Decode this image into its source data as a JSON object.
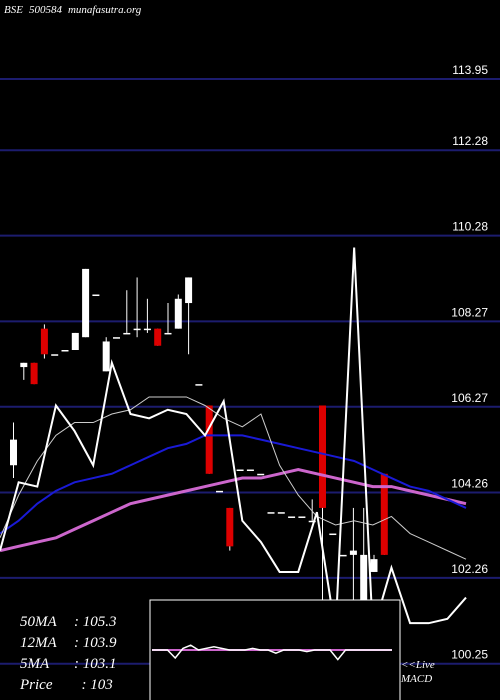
{
  "header": {
    "exchange": "BSE",
    "code": "500584",
    "site": "munafasutra.org"
  },
  "colors": {
    "background": "#000000",
    "grid": "#1c1c6e",
    "up": "#ffffff",
    "down": "#dd0000",
    "ma_long": "#1a1ad6",
    "ma_mid": "#cc66cc",
    "price_line": "#ffffff"
  },
  "legend": {
    "ma50_label": "50MA",
    "ma50_value": ": 105.3",
    "ma12_label": "12MA",
    "ma12_value": ": 103.9",
    "ma5_label": "5MA",
    "ma5_value": ": 103.1",
    "price_label": "Price",
    "price_value": "  : 103"
  },
  "macd": {
    "line1": "<<Live",
    "line2": "MACD"
  },
  "chart_data": {
    "type": "candlestick",
    "title": "BSE 500584 munafasutra.org",
    "y_ticks": [
      "113.95",
      "112.28",
      "110.28",
      "108.27",
      "106.27",
      "104.26",
      "102.26",
      "100.25"
    ],
    "ylim": [
      99.4,
      115.8
    ],
    "candles": [
      {
        "o": 104.9,
        "h": 105.9,
        "l": 104.6,
        "c": 105.5
      },
      {
        "o": 107.2,
        "h": 107.3,
        "l": 106.9,
        "c": 107.3
      },
      {
        "o": 107.3,
        "h": 107.3,
        "l": 106.8,
        "c": 106.8
      },
      {
        "o": 108.1,
        "h": 108.2,
        "l": 107.4,
        "c": 107.5
      },
      {
        "o": 107.5,
        "h": 107.5,
        "l": 107.5,
        "c": 107.5
      },
      {
        "o": 107.6,
        "h": 107.6,
        "l": 107.6,
        "c": 107.6
      },
      {
        "o": 107.6,
        "h": 108.0,
        "l": 107.6,
        "c": 108.0
      },
      {
        "o": 107.9,
        "h": 109.5,
        "l": 107.9,
        "c": 109.5
      },
      {
        "o": 108.9,
        "h": 108.9,
        "l": 108.9,
        "c": 108.9
      },
      {
        "o": 107.1,
        "h": 107.9,
        "l": 107.1,
        "c": 107.8
      },
      {
        "o": 107.9,
        "h": 107.9,
        "l": 107.9,
        "c": 107.9
      },
      {
        "o": 108.0,
        "h": 109.0,
        "l": 108.0,
        "c": 108.0
      },
      {
        "o": 108.1,
        "h": 109.3,
        "l": 107.9,
        "c": 108.1
      },
      {
        "o": 108.1,
        "h": 108.8,
        "l": 108.0,
        "c": 108.1
      },
      {
        "o": 108.1,
        "h": 108.1,
        "l": 107.7,
        "c": 107.7
      },
      {
        "o": 108.0,
        "h": 108.7,
        "l": 108.0,
        "c": 108.0
      },
      {
        "o": 108.1,
        "h": 108.9,
        "l": 108.1,
        "c": 108.8
      },
      {
        "o": 108.7,
        "h": 109.3,
        "l": 107.5,
        "c": 109.3
      },
      {
        "o": 106.8,
        "h": 106.8,
        "l": 106.8,
        "c": 106.8
      },
      {
        "o": 106.3,
        "h": 106.3,
        "l": 104.7,
        "c": 104.7
      },
      {
        "o": 104.3,
        "h": 104.3,
        "l": 104.3,
        "c": 104.3
      },
      {
        "o": 103.9,
        "h": 103.9,
        "l": 102.9,
        "c": 103.0
      },
      {
        "o": 104.8,
        "h": 104.8,
        "l": 104.8,
        "c": 104.8
      },
      {
        "o": 104.8,
        "h": 104.8,
        "l": 104.8,
        "c": 104.8
      },
      {
        "o": 104.7,
        "h": 104.7,
        "l": 104.7,
        "c": 104.7
      },
      {
        "o": 103.8,
        "h": 103.8,
        "l": 103.8,
        "c": 103.8
      },
      {
        "o": 103.8,
        "h": 103.8,
        "l": 103.8,
        "c": 103.8
      },
      {
        "o": 103.7,
        "h": 103.7,
        "l": 103.7,
        "c": 103.7
      },
      {
        "o": 103.7,
        "h": 103.7,
        "l": 103.7,
        "c": 103.7
      },
      {
        "o": 103.6,
        "h": 104.1,
        "l": 103.6,
        "c": 103.6
      },
      {
        "o": 106.3,
        "h": 106.3,
        "l": 100.2,
        "c": 103.9
      },
      {
        "o": 103.3,
        "h": 103.3,
        "l": 103.3,
        "c": 103.3
      },
      {
        "o": 102.8,
        "h": 102.8,
        "l": 102.8,
        "c": 102.8
      },
      {
        "o": 102.8,
        "h": 103.9,
        "l": 101.6,
        "c": 102.9
      },
      {
        "o": 101.7,
        "h": 103.9,
        "l": 101.7,
        "c": 102.8
      },
      {
        "o": 102.4,
        "h": 102.8,
        "l": 102.4,
        "c": 102.7
      },
      {
        "o": 104.7,
        "h": 104.7,
        "l": 102.8,
        "c": 102.8
      }
    ],
    "ma_long": [
      103.3,
      103.6,
      104.0,
      104.3,
      104.5,
      104.6,
      104.7,
      104.9,
      105.1,
      105.3,
      105.4,
      105.6,
      105.6,
      105.6,
      105.5,
      105.4,
      105.3,
      105.2,
      105.1,
      105.0,
      104.8,
      104.6,
      104.4,
      104.3,
      104.1,
      103.9
    ],
    "ma_mid": [
      102.9,
      103.0,
      103.1,
      103.2,
      103.4,
      103.6,
      103.8,
      104.0,
      104.1,
      104.2,
      104.3,
      104.4,
      104.5,
      104.6,
      104.6,
      104.7,
      104.8,
      104.7,
      104.6,
      104.5,
      104.4,
      104.4,
      104.3,
      104.2,
      104.1,
      104.0
    ],
    "ma_short": [
      103.2,
      104.2,
      105.0,
      105.6,
      105.9,
      105.9,
      106.1,
      106.2,
      106.5,
      106.5,
      106.5,
      106.3,
      106.0,
      105.8,
      106.1,
      104.9,
      104.2,
      103.7,
      103.5,
      103.6,
      103.5,
      103.7,
      103.3,
      103.1,
      102.9,
      102.7
    ],
    "price_line": [
      102.9,
      104.5,
      104.4,
      106.3,
      105.7,
      104.9,
      107.3,
      106.1,
      106.0,
      106.2,
      106.1,
      105.6,
      106.4,
      103.6,
      103.1,
      102.4,
      102.4,
      103.8,
      101.0,
      110.0,
      101.0,
      102.5,
      101.2,
      101.2,
      101.3,
      101.8
    ],
    "macd": [
      0.0,
      0.0,
      0.0,
      -0.5,
      0.1,
      0.3,
      0.0,
      0.1,
      0.2,
      0.1,
      0.0,
      0.0,
      0.0,
      0.1,
      0.0,
      0.0,
      -0.2,
      0.0,
      0.0,
      0.0,
      -0.1,
      0.0,
      0.0,
      0.0,
      -0.6,
      0.0,
      0.0,
      0.0,
      0.0,
      0.0,
      0.0,
      0.0
    ]
  }
}
